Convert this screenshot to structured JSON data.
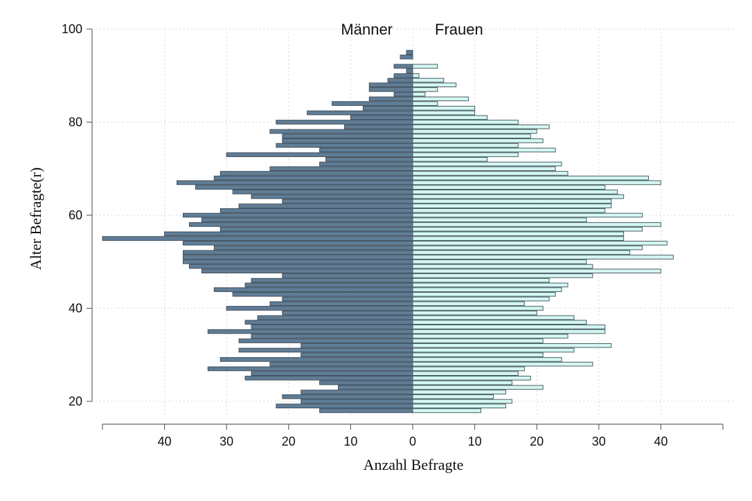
{
  "chart_data": {
    "type": "bar",
    "orientation": "horizontal",
    "subtype": "population-pyramid",
    "xlabel": "Anzahl Befragte",
    "ylabel": "Alter Befragte(r)",
    "x_tick_labels": [
      "40",
      "30",
      "20",
      "10",
      "0",
      "10",
      "20",
      "30",
      "40"
    ],
    "y_ticks": [
      20,
      40,
      60,
      80,
      100
    ],
    "xlim": [
      -50,
      50
    ],
    "ylim": [
      18,
      100
    ],
    "grid": true,
    "ages": [
      18,
      19,
      20,
      21,
      22,
      23,
      24,
      25,
      26,
      27,
      28,
      29,
      30,
      31,
      32,
      33,
      34,
      35,
      36,
      37,
      38,
      39,
      40,
      41,
      42,
      43,
      44,
      45,
      46,
      47,
      48,
      49,
      50,
      51,
      52,
      53,
      54,
      55,
      56,
      57,
      58,
      59,
      60,
      61,
      62,
      63,
      64,
      65,
      66,
      67,
      68,
      69,
      70,
      71,
      72,
      73,
      74,
      75,
      76,
      77,
      78,
      79,
      80,
      81,
      82,
      83,
      84,
      85,
      86,
      87,
      88,
      89,
      90,
      91,
      92,
      93,
      94,
      95
    ],
    "series": [
      {
        "name": "Männer",
        "color": "#607d96",
        "values": [
          15,
          22,
          18,
          21,
          18,
          12,
          15,
          27,
          26,
          33,
          23,
          31,
          18,
          28,
          18,
          28,
          26,
          33,
          26,
          27,
          25,
          21,
          30,
          23,
          21,
          29,
          32,
          27,
          26,
          21,
          34,
          36,
          37,
          37,
          37,
          32,
          37,
          50,
          40,
          31,
          36,
          34,
          37,
          31,
          28,
          21,
          26,
          29,
          35,
          38,
          32,
          31,
          23,
          15,
          14,
          30,
          15,
          22,
          21,
          21,
          23,
          11,
          22,
          10,
          17,
          8,
          13,
          7,
          3,
          7,
          7,
          4,
          3,
          1,
          3,
          0,
          2,
          1
        ]
      },
      {
        "name": "Frauen",
        "color": "#d4f7f0",
        "values": [
          11,
          15,
          16,
          13,
          15,
          21,
          16,
          19,
          17,
          18,
          29,
          24,
          21,
          26,
          32,
          21,
          25,
          31,
          31,
          28,
          26,
          20,
          21,
          18,
          22,
          23,
          24,
          25,
          22,
          29,
          40,
          29,
          28,
          42,
          35,
          37,
          41,
          34,
          34,
          37,
          40,
          28,
          37,
          31,
          32,
          32,
          34,
          33,
          31,
          40,
          38,
          25,
          23,
          24,
          12,
          17,
          23,
          17,
          21,
          19,
          20,
          22,
          17,
          12,
          10,
          10,
          4,
          9,
          2,
          4,
          7,
          5,
          1,
          0,
          4,
          0,
          0,
          0
        ]
      }
    ]
  }
}
